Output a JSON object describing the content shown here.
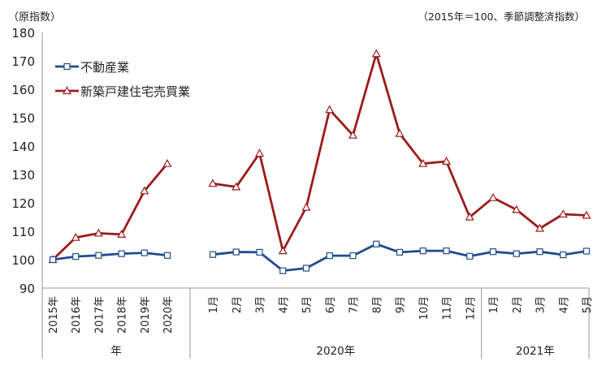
{
  "chart_data": {
    "type": "line",
    "unit_note_left": "（原指数）",
    "unit_note_right": "（2015年＝100、季節調整済指数）",
    "ylim": [
      90,
      180
    ],
    "yticks": [
      90,
      100,
      110,
      120,
      130,
      140,
      150,
      160,
      170,
      180
    ],
    "grid": false,
    "legend_position": "top-left",
    "annual": {
      "categories": [
        "2015年",
        "2016年",
        "2017年",
        "2018年",
        "2019年",
        "2020年"
      ],
      "group_label": "年"
    },
    "monthly": {
      "groups": [
        {
          "label": "2020年",
          "categories": [
            "1月",
            "2月",
            "3月",
            "4月",
            "5月",
            "6月",
            "7月",
            "8月",
            "9月",
            "10月",
            "11月",
            "12月"
          ]
        },
        {
          "label": "2021年",
          "categories": [
            "1月",
            "2月",
            "3月",
            "4月",
            "5月"
          ]
        }
      ]
    },
    "series": [
      {
        "name": "不動産業",
        "color": "#1f4e8c",
        "marker": "square",
        "annual": [
          100.0,
          101.1,
          101.5,
          102.1,
          102.4,
          101.5
        ],
        "monthly": [
          101.8,
          102.7,
          102.6,
          96.1,
          97.0,
          101.4,
          101.4,
          105.5,
          102.6,
          103.1,
          103.1,
          101.2,
          102.8,
          102.1,
          102.8,
          101.7,
          103.0
        ]
      },
      {
        "name": "新築戸建住宅売買業",
        "color": "#9b1b1b",
        "marker": "triangle",
        "annual": [
          100.0,
          107.8,
          109.3,
          108.9,
          124.2,
          133.8
        ],
        "monthly": [
          126.8,
          125.6,
          137.4,
          103.1,
          118.4,
          152.8,
          143.8,
          172.5,
          144.4,
          133.8,
          134.6,
          115.0,
          121.8,
          117.6,
          111.0,
          116.0,
          115.6
        ]
      }
    ]
  }
}
